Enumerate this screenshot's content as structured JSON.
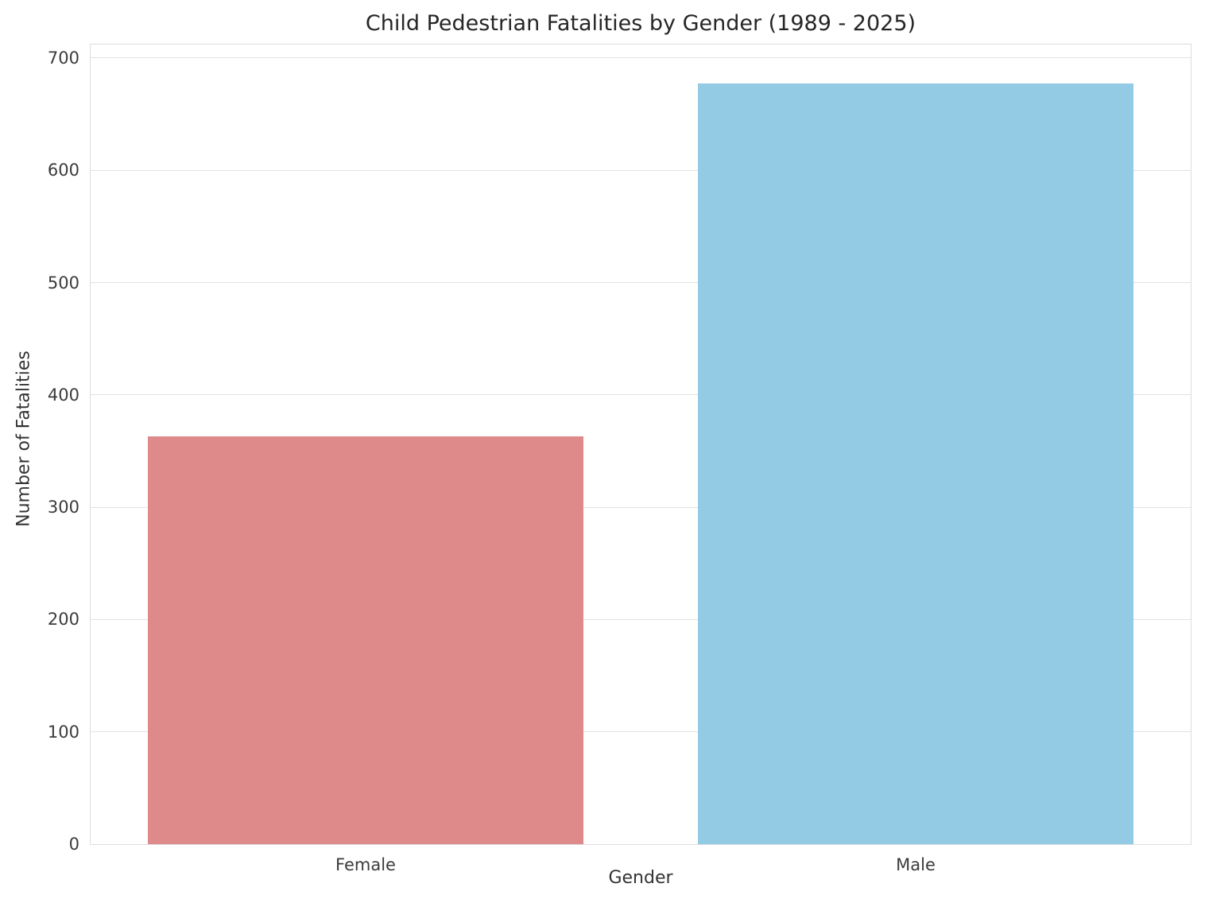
{
  "chart_data": {
    "type": "bar",
    "title": "Child Pedestrian Fatalities by Gender (1989 - 2025)",
    "xlabel": "Gender",
    "ylabel": "Number of Fatalities",
    "categories": [
      "Female",
      "Male"
    ],
    "values": [
      363,
      677
    ],
    "bar_colors": [
      "#de8a8a",
      "#92cbe3"
    ],
    "ylim": [
      0,
      712
    ],
    "yticks": [
      0,
      100,
      200,
      300,
      400,
      500,
      600,
      700
    ],
    "grid": "horizontal",
    "legend": "none",
    "bar_width_fraction": 0.793,
    "gridline_color": "#e2e2e2",
    "spine_color": "#dcdcdc",
    "background_color": "#ffffff"
  }
}
